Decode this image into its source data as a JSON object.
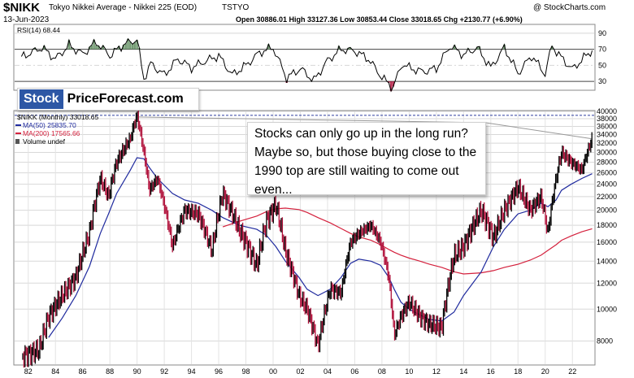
{
  "header": {
    "ticker": "$NIKK",
    "name": "Tokyo Nikkei Average - Nikkei 225 (EOD)",
    "exchange": "TSTYO",
    "date": "13-Jun-2023",
    "watermark": "@ StockCharts.com",
    "ohlc": "Open 30886.01  High 33127.36  Low 30853.44  Close 33018.65  Chg +2130.77 (+6.90%)"
  },
  "rsi_panel": {
    "label": "RSI(14) 68.44",
    "y_ticks": [
      "90",
      "70",
      "50",
      "30"
    ]
  },
  "brand": {
    "stock": "Stock",
    "rest": "PriceForecast.com"
  },
  "legend": {
    "main": "$NIKK (Monthly) 33018.65",
    "ma50": "MA(50) 25835.70",
    "ma200": "MA(200) 17565.66",
    "volume": "Volume undef"
  },
  "annotation": {
    "text": "Stocks can only go up in the long run? Maybe so, but those buying close to the 1990 top are still waiting to come out even..."
  },
  "colors": {
    "up": "#000000",
    "down": "#b0103a",
    "ma50": "#1f2a9e",
    "ma200": "#d4213d",
    "rsi": "#000000",
    "rsi_fill": "#5b8a5b",
    "grid": "#d8d8d8",
    "dash": "#2d3fa0"
  },
  "chart_data": [
    {
      "type": "line",
      "title": "RSI(14) 68.44",
      "ylim": [
        20,
        100
      ],
      "y_ticks": [
        90,
        70,
        50,
        30
      ],
      "x": [
        1981.5,
        1983,
        1984,
        1985,
        1986,
        1987,
        1988,
        1989,
        1990,
        1990.5,
        1991,
        1992,
        1993,
        1994,
        1995,
        1996,
        1997,
        1998,
        1999,
        2000,
        2001,
        2002,
        2003,
        2004,
        2005,
        2006,
        2007,
        2008,
        2008.8,
        2009.5,
        2010,
        2011,
        2012,
        2013,
        2014,
        2015,
        2016,
        2017,
        2018,
        2019,
        2020,
        2020.5,
        2021,
        2022,
        2023,
        2023.45
      ],
      "series": [
        {
          "values": [
            60,
            72,
            58,
            75,
            64,
            79,
            62,
            76,
            82,
            33,
            52,
            38,
            58,
            47,
            55,
            62,
            38,
            50,
            66,
            72,
            34,
            46,
            31,
            56,
            70,
            68,
            58,
            35,
            22,
            52,
            47,
            42,
            46,
            74,
            63,
            72,
            47,
            72,
            40,
            62,
            39,
            75,
            63,
            45,
            62,
            68.44
          ]
        }
      ]
    },
    {
      "type": "line",
      "title": "$NIKK (Monthly) 33018.65",
      "y_scale": "log",
      "ylim": [
        6800,
        40000
      ],
      "y_ticks": [
        8000,
        10000,
        12000,
        14000,
        16000,
        18000,
        20000,
        22000,
        24000,
        26000,
        28000,
        30000,
        32000,
        34000,
        36000,
        38000,
        40000
      ],
      "x_ticks": [
        "82",
        "84",
        "86",
        "88",
        "90",
        "92",
        "94",
        "96",
        "98",
        "00",
        "02",
        "04",
        "06",
        "08",
        "10",
        "12",
        "14",
        "16",
        "18",
        "20",
        "22"
      ],
      "x": [
        1981.6,
        1982.8,
        1983.5,
        1984.5,
        1985.5,
        1986.5,
        1987.3,
        1987.9,
        1988.5,
        1989.5,
        1989.99,
        1990.5,
        1990.9,
        1991.5,
        1992.6,
        1993.5,
        1994.5,
        1995.5,
        1996.3,
        1997.5,
        1998.8,
        1999.5,
        2000.2,
        2000.9,
        2001.9,
        2002.5,
        2003.3,
        2004.2,
        2005,
        2005.7,
        2006.3,
        2007.2,
        2007.9,
        2008.5,
        2008.9,
        2009.4,
        2010,
        2010.8,
        2011.5,
        2012.4,
        2013.3,
        2014,
        2015.3,
        2016.2,
        2017,
        2018,
        2018.9,
        2019.7,
        2020.2,
        2020.8,
        2021.2,
        2021.9,
        2022.7,
        2023.45
      ],
      "series": [
        {
          "name": "$NIKK (Monthly)",
          "values": [
            7200,
            7500,
            9500,
            11000,
            12500,
            17000,
            25000,
            22000,
            28000,
            33000,
            38900,
            30000,
            23000,
            25000,
            15500,
            20000,
            19500,
            15000,
            22500,
            17500,
            13500,
            18500,
            20800,
            15000,
            11000,
            10000,
            7700,
            11500,
            11200,
            16000,
            17000,
            18000,
            16000,
            12500,
            8300,
            9500,
            10500,
            9500,
            9000,
            8800,
            14500,
            15500,
            20000,
            16500,
            20000,
            23500,
            20000,
            22000,
            17000,
            25000,
            30000,
            28000,
            26500,
            33018.65
          ]
        },
        {
          "name": "MA(50)",
          "values": [
            null,
            null,
            8200,
            9400,
            11000,
            13500,
            17000,
            19500,
            22500,
            26500,
            28900,
            28700,
            27000,
            25000,
            22500,
            21500,
            21000,
            20000,
            19000,
            18000,
            17500,
            16800,
            15500,
            14000,
            12500,
            11500,
            11000,
            11500,
            12500,
            13800,
            14200,
            14000,
            13600,
            12500,
            11500,
            10500,
            10000,
            9600,
            9300,
            9200,
            9800,
            11000,
            13000,
            15500,
            17500,
            19500,
            20000,
            21000,
            20500,
            21500,
            23000,
            24000,
            25000,
            25835.7
          ]
        },
        {
          "name": "MA(200)",
          "values": [
            null,
            null,
            null,
            null,
            null,
            null,
            null,
            null,
            null,
            null,
            null,
            null,
            null,
            null,
            null,
            null,
            null,
            null,
            17800,
            18500,
            19200,
            19800,
            20200,
            20300,
            20100,
            19700,
            19000,
            18300,
            17600,
            17000,
            16600,
            16200,
            15700,
            15200,
            14900,
            14600,
            14300,
            14000,
            13700,
            13400,
            13000,
            12800,
            12900,
            13100,
            13400,
            13700,
            14100,
            14600,
            15100,
            15700,
            16200,
            16700,
            17200,
            17565.66
          ]
        }
      ]
    }
  ]
}
